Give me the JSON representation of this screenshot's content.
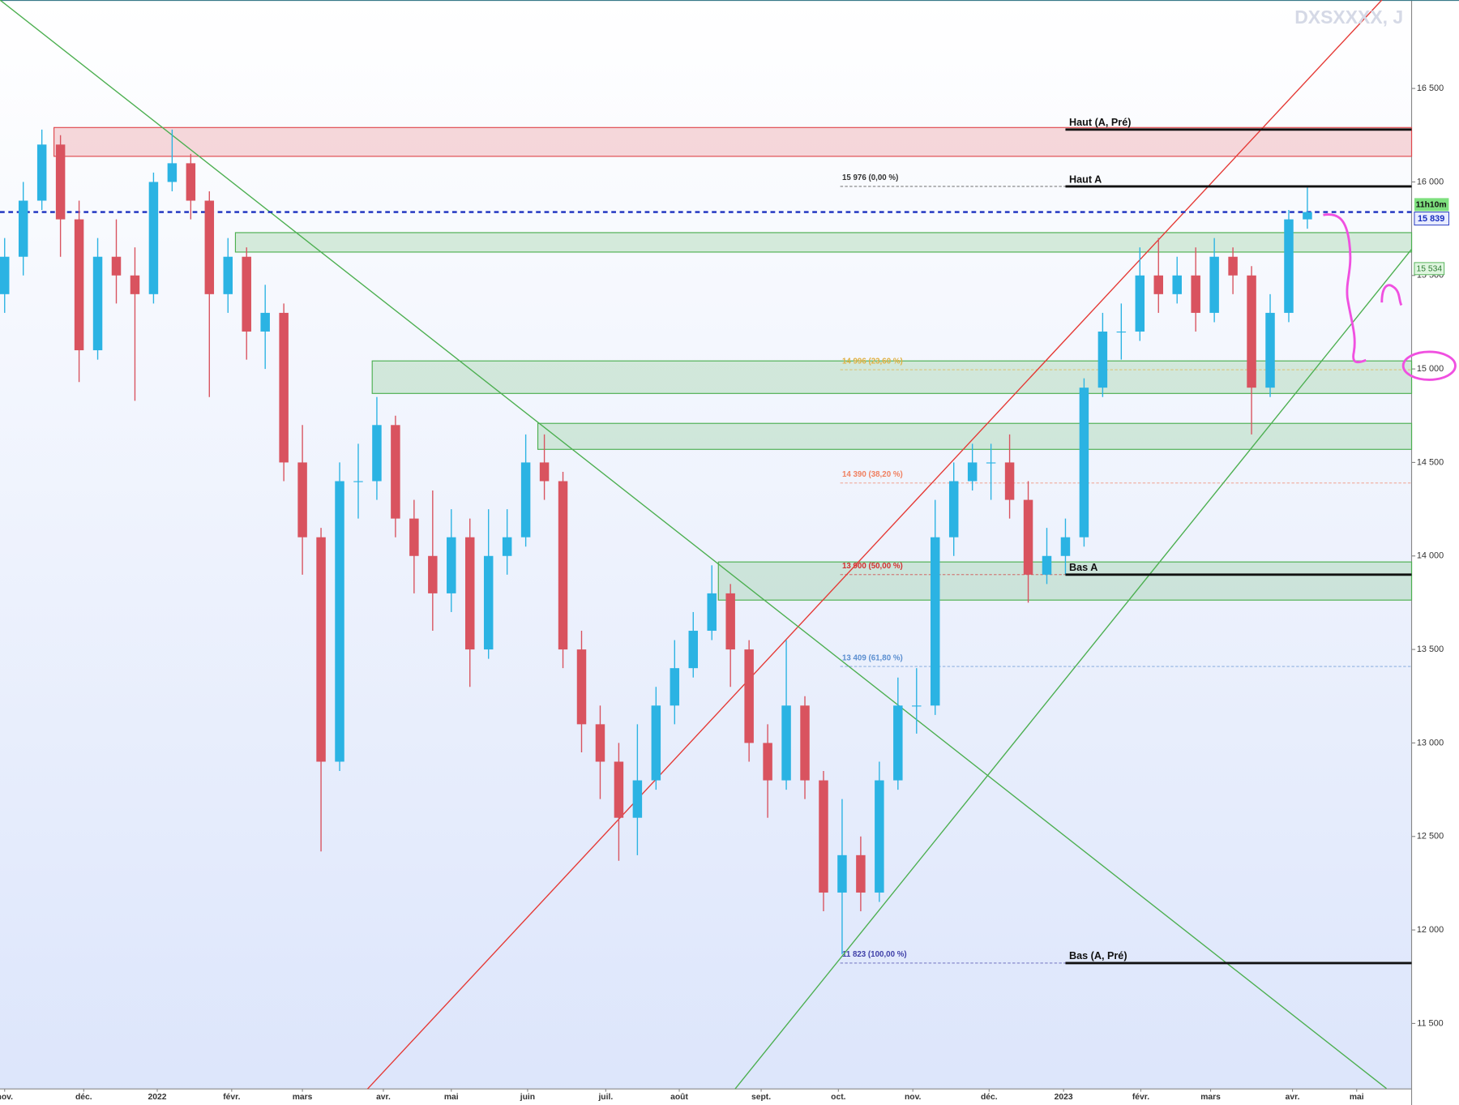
{
  "chart_data": {
    "type": "candlestick",
    "title": "DXSXXXX, J",
    "x": [
      0,
      1,
      2,
      3,
      4,
      5,
      6,
      7,
      8,
      9,
      10,
      11,
      12,
      13,
      14,
      15,
      16,
      17,
      18,
      19,
      20,
      21,
      22,
      23,
      24,
      25,
      26,
      27,
      28,
      29,
      30,
      31,
      32,
      33,
      34,
      35,
      36,
      37,
      38,
      39,
      40,
      41,
      42,
      43,
      44,
      45,
      46,
      47,
      48,
      49,
      50,
      51,
      52,
      53,
      54,
      55,
      56,
      57,
      58,
      59,
      60,
      61,
      62,
      63,
      64,
      65,
      66,
      67,
      68,
      69,
      70
    ],
    "open": [
      15400,
      15600,
      15900,
      16200,
      15800,
      15100,
      15600,
      15500,
      15400,
      16000,
      16100,
      15900,
      15400,
      15600,
      15200,
      15300,
      14500,
      14100,
      12900,
      14400,
      14400,
      14700,
      14200,
      14000,
      13800,
      14100,
      13500,
      14000,
      14100,
      14500,
      14400,
      13500,
      13100,
      12900,
      12600,
      12800,
      13200,
      13400,
      13600,
      13800,
      13500,
      13000,
      12800,
      13200,
      12800,
      12200,
      12400,
      12200,
      12800,
      13200,
      13200,
      14100,
      14400,
      14500,
      14500,
      14300,
      13900,
      14000,
      14100,
      14900,
      15200,
      15200,
      15500,
      15400,
      15500,
      15300,
      15600,
      15500,
      14900,
      15300,
      15800
    ],
    "high": [
      15700,
      16000,
      16280,
      16250,
      15900,
      15700,
      15800,
      15650,
      16050,
      16280,
      16150,
      15950,
      15700,
      15650,
      15450,
      15350,
      14700,
      14150,
      14500,
      14600,
      14850,
      14750,
      14300,
      14350,
      14250,
      14200,
      14250,
      14250,
      14650,
      14650,
      14450,
      13600,
      13200,
      13000,
      13100,
      13300,
      13550,
      13700,
      13950,
      13850,
      13550,
      13100,
      13550,
      13250,
      12850,
      12700,
      12500,
      12900,
      13350,
      13400,
      14300,
      14500,
      14600,
      14600,
      14650,
      14400,
      14150,
      14200,
      14950,
      15300,
      15350,
      15650,
      15700,
      15600,
      15650,
      15700,
      15650,
      15550,
      15400,
      15850,
      15970
    ],
    "low": [
      15300,
      15500,
      15850,
      15600,
      14930,
      15050,
      15350,
      14830,
      15350,
      15950,
      15800,
      14850,
      15300,
      15050,
      15000,
      14400,
      13900,
      12420,
      12850,
      14200,
      14300,
      14100,
      13800,
      13600,
      13700,
      13300,
      13450,
      13900,
      14050,
      14300,
      13400,
      12950,
      12700,
      12370,
      12400,
      12750,
      13100,
      13350,
      13550,
      13300,
      12900,
      12600,
      12750,
      12700,
      12100,
      11870,
      12100,
      12150,
      12750,
      13050,
      13150,
      14000,
      14350,
      14300,
      14200,
      13750,
      13850,
      13900,
      14050,
      14850,
      15050,
      15150,
      15300,
      15350,
      15200,
      15250,
      15400,
      14650,
      14850,
      15250,
      15750
    ],
    "close": [
      15600,
      15900,
      16200,
      15800,
      15100,
      15600,
      15500,
      15400,
      16000,
      16100,
      15900,
      15400,
      15600,
      15200,
      15300,
      14500,
      14100,
      12900,
      14400,
      14400,
      14700,
      14200,
      14000,
      13800,
      14100,
      13500,
      14000,
      14100,
      14500,
      14400,
      13500,
      13100,
      12900,
      12600,
      12800,
      13200,
      13400,
      13600,
      13800,
      13500,
      13000,
      12800,
      13200,
      12800,
      12200,
      12400,
      12200,
      12800,
      13200,
      13200,
      14100,
      14400,
      14500,
      14500,
      14300,
      13900,
      14000,
      14100,
      14900,
      15200,
      15200,
      15500,
      15400,
      15500,
      15300,
      15600,
      15500,
      14900,
      15300,
      15800,
      15839
    ],
    "up_color": "#2bb3e3",
    "down_color": "#d9535f",
    "xlim": [
      -0.25,
      75.6
    ],
    "xticks": [
      {
        "value": 0,
        "label": "nov."
      },
      {
        "value": 4.25,
        "label": "déc."
      },
      {
        "value": 8.2,
        "label": "2022"
      },
      {
        "value": 12.2,
        "label": "févr."
      },
      {
        "value": 16,
        "label": "mars"
      },
      {
        "value": 20.35,
        "label": "avr."
      },
      {
        "value": 24,
        "label": "mai"
      },
      {
        "value": 28.1,
        "label": "juin"
      },
      {
        "value": 32.3,
        "label": "juil."
      },
      {
        "value": 36.25,
        "label": "août"
      },
      {
        "value": 40.65,
        "label": "sept."
      },
      {
        "value": 44.8,
        "label": "oct."
      },
      {
        "value": 48.8,
        "label": "nov."
      },
      {
        "value": 52.9,
        "label": "déc."
      },
      {
        "value": 56.9,
        "label": "2023"
      },
      {
        "value": 61.05,
        "label": "févr."
      },
      {
        "value": 64.8,
        "label": "mars"
      },
      {
        "value": 69.2,
        "label": "avr."
      },
      {
        "value": 72.65,
        "label": "mai"
      }
    ],
    "ylim": [
      11150,
      16973
    ],
    "yticks": [
      {
        "value": 11500,
        "label": "11 500"
      },
      {
        "value": 12000,
        "label": "12 000"
      },
      {
        "value": 12500,
        "label": "12 500"
      },
      {
        "value": 13000,
        "label": "13 000"
      },
      {
        "value": 13500,
        "label": "13 500"
      },
      {
        "value": 14000,
        "label": "14 000"
      },
      {
        "value": 14500,
        "label": "14 500"
      },
      {
        "value": 15000,
        "label": "15 000"
      },
      {
        "value": 15500,
        "label": "15 500"
      },
      {
        "value": 16000,
        "label": "16 000"
      },
      {
        "value": 16500,
        "label": "16 500"
      }
    ],
    "zones": [
      {
        "start": 2.65,
        "low": 16137,
        "high": 16291,
        "color": "#e0484d"
      },
      {
        "start": 12.4,
        "low": 15625,
        "high": 15729,
        "color": "#4caf50"
      },
      {
        "start": 19.75,
        "low": 14869,
        "high": 15043,
        "color": "#4caf50"
      },
      {
        "start": 28.65,
        "low": 14570,
        "high": 14709,
        "color": "#4caf50"
      },
      {
        "start": 38.35,
        "low": 13764,
        "high": 13968,
        "color": "#4caf50"
      }
    ],
    "trend_lines": [
      {
        "color": "#e53935",
        "points": [
          [
            19.5,
            11150
          ],
          [
            74,
            16973
          ]
        ]
      },
      {
        "color": "#4caf50",
        "points": [
          [
            -0.25,
            16973
          ],
          [
            74.25,
            11152
          ]
        ]
      },
      {
        "color": "#4caf50",
        "points": [
          [
            39.25,
            11150
          ],
          [
            75.6,
            15640
          ]
        ]
      }
    ],
    "fib_start": 44.9,
    "fib_levels": [
      {
        "value": 15976,
        "label": "15 976 (0,00 %)",
        "color": "#333333"
      },
      {
        "value": 14996,
        "label": "14 996 (23,60 %)",
        "color": "#e0b040"
      },
      {
        "value": 14390,
        "label": "14 390 (38,20 %)",
        "color": "#f08060"
      },
      {
        "value": 13900,
        "label": "13 900 (50,00 %)",
        "color": "#d32f2f"
      },
      {
        "value": 13409,
        "label": "13 409 (61,80 %)",
        "color": "#5b8fd0"
      },
      {
        "value": 11823,
        "label": "11 823 (100,00 %)",
        "color": "#3f3fa8"
      }
    ],
    "level_start": 57,
    "levels": [
      {
        "value": 16280,
        "label": "Haut (A, Pré)"
      },
      {
        "value": 15976,
        "label": "Haut A"
      },
      {
        "value": 13900,
        "label": "Bas A"
      },
      {
        "value": 11823,
        "label": "Bas (A, Pré)"
      }
    ],
    "current_price": {
      "value": 15839,
      "label": "15 839",
      "color": "#1a2fbf"
    },
    "countdown": "11h10m",
    "price_labels": [
      {
        "value": 15534,
        "label": "15 534",
        "color": "#4caf50"
      }
    ]
  }
}
